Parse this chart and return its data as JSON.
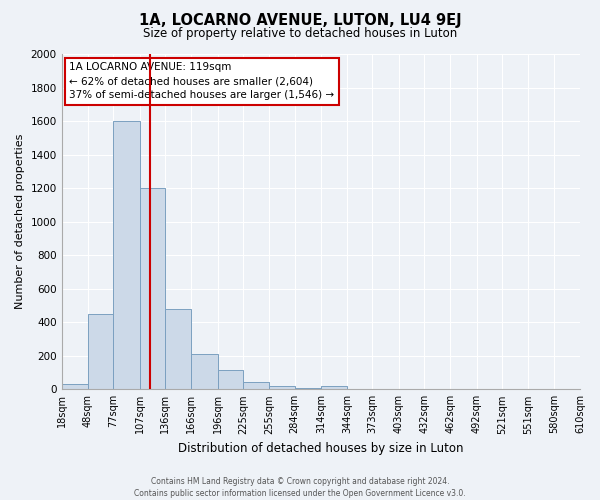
{
  "title": "1A, LOCARNO AVENUE, LUTON, LU4 9EJ",
  "subtitle": "Size of property relative to detached houses in Luton",
  "xlabel": "Distribution of detached houses by size in Luton",
  "ylabel": "Number of detached properties",
  "bar_color": "#ccd9e8",
  "bar_edge_color": "#7ba0c0",
  "background_color": "#eef2f7",
  "grid_color": "#ffffff",
  "vline_x": 119,
  "vline_color": "#cc0000",
  "bin_edges": [
    18,
    48,
    77,
    107,
    136,
    166,
    196,
    225,
    255,
    284,
    314,
    344,
    373,
    403,
    432,
    462,
    492,
    521,
    551,
    580,
    610
  ],
  "bar_heights": [
    30,
    450,
    1600,
    1200,
    480,
    210,
    115,
    45,
    18,
    5,
    20,
    0,
    0,
    0,
    0,
    0,
    0,
    0,
    0,
    0
  ],
  "ylim": [
    0,
    2000
  ],
  "yticks": [
    0,
    200,
    400,
    600,
    800,
    1000,
    1200,
    1400,
    1600,
    1800,
    2000
  ],
  "annotation_title": "1A LOCARNO AVENUE: 119sqm",
  "annotation_line1": "← 62% of detached houses are smaller (2,604)",
  "annotation_line2": "37% of semi-detached houses are larger (1,546) →",
  "annotation_box_color": "#ffffff",
  "annotation_box_edge": "#cc0000",
  "footer_line1": "Contains HM Land Registry data © Crown copyright and database right 2024.",
  "footer_line2": "Contains public sector information licensed under the Open Government Licence v3.0."
}
